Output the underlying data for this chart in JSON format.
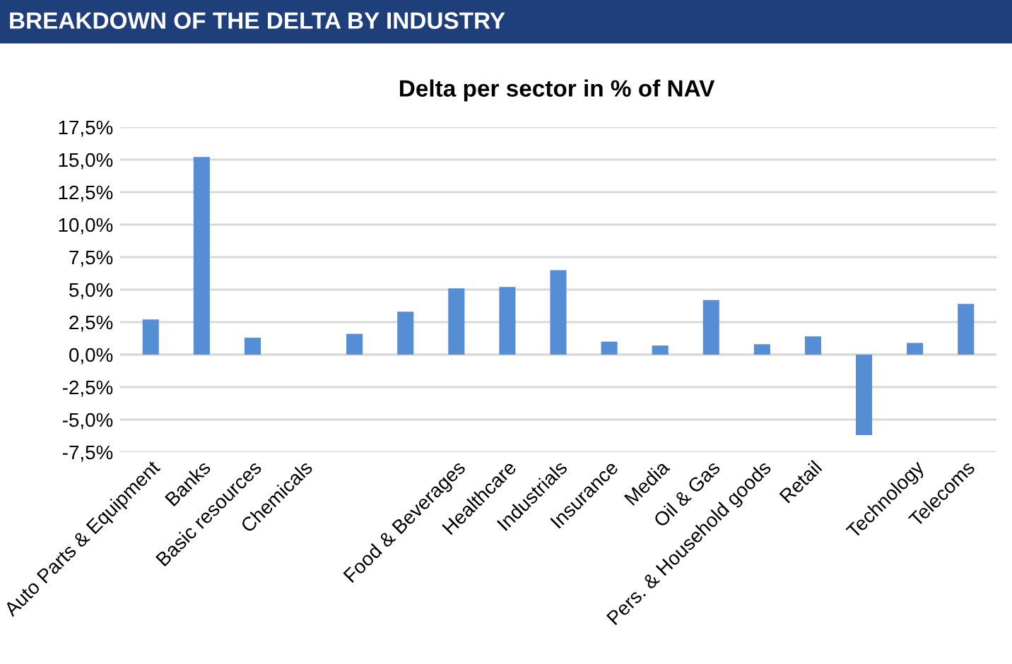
{
  "chart_data": {
    "type": "bar",
    "title": "BREAKDOWN OF THE DELTA BY INDUSTRY",
    "subtitle": "Delta per sector in % of NAV",
    "categories": [
      "Auto Parts & Equipment",
      "Banks",
      "Basic resources",
      "Chemicals",
      null,
      null,
      "Food & Beverages",
      "Healthcare",
      "Industrials",
      "Insurance",
      "Media",
      "Oil & Gas",
      "Pers. & Household goods",
      "Retail",
      null,
      "Technology",
      "Telecoms"
    ],
    "values": [
      2.7,
      15.2,
      1.3,
      0,
      1.6,
      3.3,
      5.1,
      5.2,
      6.5,
      1.0,
      0.7,
      4.2,
      0.8,
      1.4,
      -6.2,
      0.9,
      3.9
    ],
    "color": "#558ed5",
    "ylim": [
      -7.5,
      17.5
    ],
    "yticks": [
      {
        "value": -7.5,
        "label": "-7,5%"
      },
      {
        "value": -5,
        "label": "-5,0%"
      },
      {
        "value": -2.5,
        "label": "-2,5%"
      },
      {
        "value": 0,
        "label": "0,0%"
      },
      {
        "value": 2.5,
        "label": "2,5%"
      },
      {
        "value": 5,
        "label": "5,0%"
      },
      {
        "value": 7.5,
        "label": "7,5%"
      },
      {
        "value": 10,
        "label": "10,0%"
      },
      {
        "value": 12.5,
        "label": "12,5%"
      },
      {
        "value": 15,
        "label": "15,0%"
      },
      {
        "value": 17.5,
        "label": "17,5%"
      }
    ],
    "grid": "y"
  }
}
